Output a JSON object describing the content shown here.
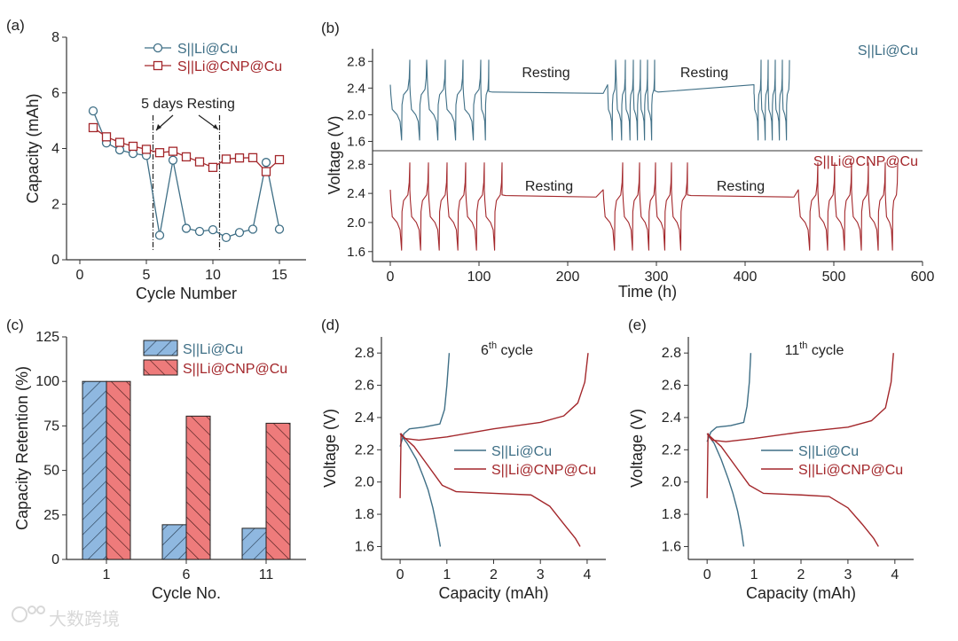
{
  "colors": {
    "blue": "#3f6f86",
    "red": "#a3272b",
    "blue_fill": "#8fb8e0",
    "red_fill": "#ee7b7b"
  },
  "watermark": "大数跨境",
  "chart_data": [
    {
      "id": "a",
      "panel_label": "(a)",
      "type": "line",
      "xlabel": "Cycle Number",
      "ylabel": "Capacity (mAh)",
      "xlim": [
        -1,
        17
      ],
      "ylim": [
        0,
        8
      ],
      "xticks": [
        0,
        5,
        10,
        15
      ],
      "yticks": [
        0,
        2,
        4,
        6,
        8
      ],
      "annotation": "5 days Resting",
      "rest_lines": [
        5.5,
        10.5
      ],
      "x": [
        1,
        2,
        3,
        4,
        5,
        6,
        7,
        8,
        9,
        10,
        11,
        12,
        13,
        14,
        15
      ],
      "series": [
        {
          "name": "S||Li@Cu",
          "marker": "circle",
          "values": [
            5.35,
            4.2,
            3.95,
            3.82,
            3.75,
            0.88,
            3.58,
            1.13,
            1.02,
            1.08,
            0.8,
            0.98,
            1.1,
            3.5,
            1.1
          ]
        },
        {
          "name": "S||Li@CNP@Cu",
          "marker": "square",
          "values": [
            4.75,
            4.42,
            4.22,
            4.08,
            3.97,
            3.85,
            3.9,
            3.7,
            3.52,
            3.32,
            3.62,
            3.66,
            3.67,
            3.17,
            3.6
          ]
        }
      ]
    },
    {
      "id": "b",
      "panel_label": "(b)",
      "type": "line",
      "xlabel": "Time (h)",
      "ylabel": "Voltage (V)",
      "xlim": [
        -20,
        600
      ],
      "xticks": [
        0,
        100,
        200,
        300,
        400,
        500,
        600
      ],
      "ylim": [
        1.5,
        2.95
      ],
      "yticks": [
        1.6,
        2.0,
        2.4,
        2.8
      ],
      "series": [
        {
          "name": "S||Li@Cu",
          "rest_label": "Resting",
          "cycles": [
            [
              0,
              22
            ],
            [
              22,
              19
            ],
            [
              42,
              20
            ],
            [
              62,
              20
            ],
            [
              82,
              20
            ],
            [
              102,
              9
            ],
            [
              245,
              9
            ],
            [
              255,
              10
            ],
            [
              265,
              9
            ],
            [
              274,
              8
            ],
            [
              282,
              8
            ],
            [
              290,
              8
            ],
            [
              410,
              8
            ],
            [
              418,
              8
            ],
            [
              426,
              8
            ],
            [
              434,
              8
            ],
            [
              442,
              8
            ]
          ],
          "rests": [
            [
              111,
              240,
              2.35,
              2.32
            ],
            [
              298,
              410,
              2.36,
              2.32
            ]
          ],
          "end": 455
        },
        {
          "name": "S||Li@CNP@Cu",
          "rest_label": "Resting",
          "cycles": [
            [
              0,
              22
            ],
            [
              22,
              21
            ],
            [
              43,
              21
            ],
            [
              64,
              21
            ],
            [
              85,
              21
            ],
            [
              106,
              20
            ],
            [
              240,
              22
            ],
            [
              262,
              19
            ],
            [
              281,
              18
            ],
            [
              299,
              18
            ],
            [
              317,
              18
            ],
            [
              460,
              22
            ],
            [
              482,
              19
            ],
            [
              501,
              19
            ],
            [
              520,
              19
            ],
            [
              539,
              19
            ],
            [
              558,
              14
            ]
          ],
          "rests": [
            [
              126,
              232,
              2.38,
              2.35
            ],
            [
              335,
              455,
              2.38,
              2.35
            ]
          ],
          "end": 572
        }
      ]
    },
    {
      "id": "c",
      "panel_label": "(c)",
      "type": "bar",
      "xlabel": "Cycle No.",
      "ylabel": "Capacity Retention (%)",
      "categories": [
        "1",
        "6",
        "11"
      ],
      "ylim": [
        0,
        125
      ],
      "yticks": [
        0,
        25,
        50,
        75,
        100,
        125
      ],
      "series": [
        {
          "name": "S||Li@Cu",
          "values": [
            100,
            19.5,
            17.5
          ]
        },
        {
          "name": "S||Li@CNP@Cu",
          "values": [
            100,
            80.5,
            76.5
          ]
        }
      ]
    },
    {
      "id": "d",
      "panel_label": "(d)",
      "type": "line",
      "title": "6",
      "title_sup": "th",
      "title_rest": " cycle",
      "xlabel": "Capacity (mAh)",
      "ylabel": "Voltage (V)",
      "xlim": [
        -0.4,
        4.4
      ],
      "xticks": [
        0,
        1,
        2,
        3,
        4
      ],
      "ylim": [
        1.52,
        2.9
      ],
      "yticks": [
        1.6,
        1.8,
        2.0,
        2.2,
        2.4,
        2.6,
        2.8
      ],
      "series": [
        {
          "name": "S||Li@Cu",
          "color": "blue",
          "curves": [
            [
              [
                0,
                2.22
              ],
              [
                0.08,
                2.3
              ],
              [
                0.2,
                2.33
              ],
              [
                0.5,
                2.34
              ],
              [
                0.85,
                2.36
              ],
              [
                0.95,
                2.45
              ],
              [
                1.0,
                2.6
              ],
              [
                1.05,
                2.8
              ]
            ],
            [
              [
                0,
                2.3
              ],
              [
                0.15,
                2.24
              ],
              [
                0.35,
                2.14
              ],
              [
                0.5,
                2.03
              ],
              [
                0.6,
                1.95
              ],
              [
                0.7,
                1.84
              ],
              [
                0.8,
                1.7
              ],
              [
                0.86,
                1.6
              ]
            ]
          ]
        },
        {
          "name": "S||Li@CNP@Cu",
          "color": "red",
          "curves": [
            [
              [
                0,
                1.9
              ],
              [
                0.02,
                2.3
              ],
              [
                0.1,
                2.27
              ],
              [
                0.4,
                2.26
              ],
              [
                1,
                2.28
              ],
              [
                2,
                2.33
              ],
              [
                3,
                2.37
              ],
              [
                3.5,
                2.41
              ],
              [
                3.8,
                2.49
              ],
              [
                3.95,
                2.62
              ],
              [
                4.02,
                2.8
              ]
            ],
            [
              [
                0,
                2.3
              ],
              [
                0.3,
                2.22
              ],
              [
                0.6,
                2.1
              ],
              [
                0.9,
                1.98
              ],
              [
                1.2,
                1.94
              ],
              [
                2,
                1.93
              ],
              [
                2.8,
                1.92
              ],
              [
                3.2,
                1.85
              ],
              [
                3.5,
                1.74
              ],
              [
                3.75,
                1.65
              ],
              [
                3.85,
                1.6
              ]
            ]
          ]
        }
      ]
    },
    {
      "id": "e",
      "panel_label": "(e)",
      "type": "line",
      "title": "11",
      "title_sup": "th",
      "title_rest": " cycle",
      "xlabel": "Capacity (mAh)",
      "ylabel": "Voltage (V)",
      "xlim": [
        -0.4,
        4.4
      ],
      "xticks": [
        0,
        1,
        2,
        3,
        4
      ],
      "ylim": [
        1.52,
        2.9
      ],
      "yticks": [
        1.6,
        1.8,
        2.0,
        2.2,
        2.4,
        2.6,
        2.8
      ],
      "series": [
        {
          "name": "S||Li@Cu",
          "color": "blue",
          "curves": [
            [
              [
                0,
                2.25
              ],
              [
                0.08,
                2.31
              ],
              [
                0.2,
                2.34
              ],
              [
                0.5,
                2.35
              ],
              [
                0.78,
                2.37
              ],
              [
                0.85,
                2.47
              ],
              [
                0.9,
                2.62
              ],
              [
                0.93,
                2.8
              ]
            ],
            [
              [
                0,
                2.3
              ],
              [
                0.15,
                2.24
              ],
              [
                0.3,
                2.14
              ],
              [
                0.45,
                2.02
              ],
              [
                0.55,
                1.93
              ],
              [
                0.65,
                1.82
              ],
              [
                0.73,
                1.7
              ],
              [
                0.78,
                1.6
              ]
            ]
          ]
        },
        {
          "name": "S||Li@CNP@Cu",
          "color": "red",
          "curves": [
            [
              [
                0,
                1.9
              ],
              [
                0.02,
                2.3
              ],
              [
                0.1,
                2.26
              ],
              [
                0.4,
                2.25
              ],
              [
                1,
                2.27
              ],
              [
                2,
                2.31
              ],
              [
                3,
                2.34
              ],
              [
                3.5,
                2.38
              ],
              [
                3.8,
                2.46
              ],
              [
                3.92,
                2.62
              ],
              [
                3.97,
                2.8
              ]
            ],
            [
              [
                0,
                2.3
              ],
              [
                0.3,
                2.22
              ],
              [
                0.6,
                2.1
              ],
              [
                0.9,
                1.98
              ],
              [
                1.2,
                1.93
              ],
              [
                2,
                1.92
              ],
              [
                2.6,
                1.91
              ],
              [
                3,
                1.84
              ],
              [
                3.3,
                1.74
              ],
              [
                3.55,
                1.65
              ],
              [
                3.65,
                1.6
              ]
            ]
          ]
        }
      ]
    }
  ]
}
